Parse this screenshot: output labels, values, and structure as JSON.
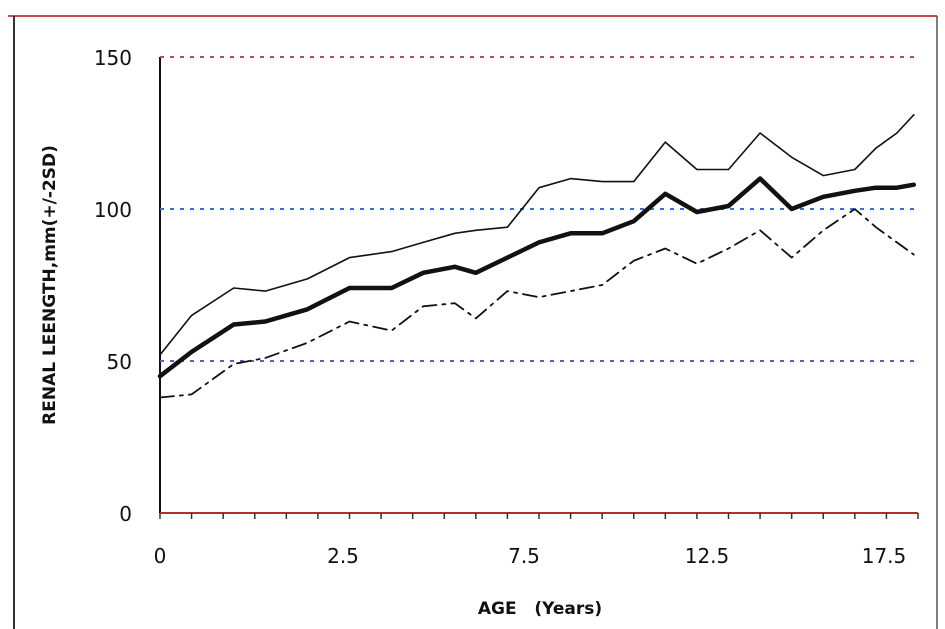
{
  "chart_data": {
    "type": "line",
    "title": "",
    "xlabel": "AGE   (Years)",
    "ylabel": "RENAL LEENGTH,mm(+/-2SD)",
    "xlim": [
      0,
      18
    ],
    "ylim": [
      0,
      150
    ],
    "x_ticks": [
      0,
      2.5,
      7.5,
      12.5,
      17.5
    ],
    "x_tick_labels": [
      "0",
      "2.5",
      "7.5",
      "12.5",
      "17.5"
    ],
    "y_ticks": [
      0,
      50,
      100,
      150
    ],
    "y_tick_labels": [
      "0",
      "50",
      "100",
      "150"
    ],
    "grid": "dotted horizontal lines at 50, 100, 150",
    "legend": "none",
    "x": [
      0,
      0.75,
      1.75,
      2.5,
      3.5,
      4.5,
      5.5,
      6.25,
      7,
      7.5,
      8.25,
      9,
      9.75,
      10.5,
      11.25,
      12,
      12.75,
      13.5,
      14.25,
      15,
      15.75,
      16.5,
      17,
      17.5,
      17.9
    ],
    "series": [
      {
        "name": "",
        "style": "thin-solid",
        "values": [
          52,
          65,
          74,
          73,
          77,
          84,
          86,
          89,
          92,
          93,
          94,
          107,
          110,
          109,
          109,
          122,
          113,
          113,
          125,
          117,
          111,
          113,
          120,
          125,
          131
        ]
      },
      {
        "name": "",
        "style": "thick-solid",
        "values": [
          45,
          53,
          62,
          63,
          67,
          74,
          74,
          79,
          81,
          79,
          84,
          89,
          92,
          92,
          96,
          105,
          99,
          101,
          110,
          100,
          104,
          106,
          107,
          107,
          108
        ]
      },
      {
        "name": "",
        "style": "dash-dot",
        "values": [
          38,
          39,
          49,
          51,
          56,
          63,
          60,
          68,
          69,
          64,
          73,
          71,
          73,
          75,
          83,
          87,
          82,
          87,
          93,
          84,
          93,
          100,
          94,
          89,
          85
        ]
      }
    ]
  }
}
